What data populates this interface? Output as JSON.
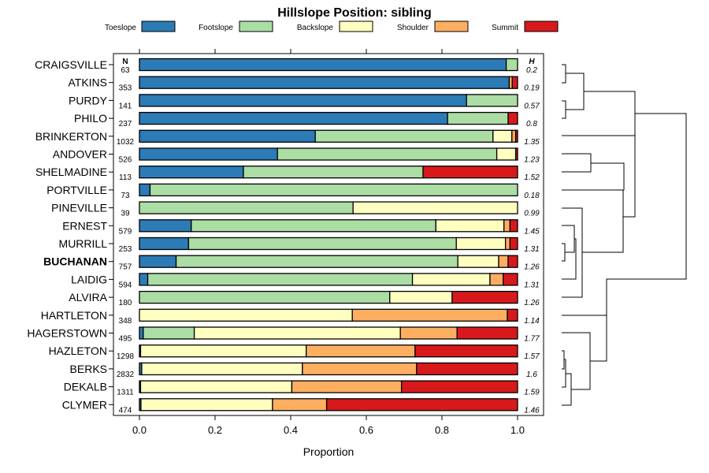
{
  "chart_data": {
    "type": "stacked-bar",
    "title": "Hillslope Position: sibling",
    "xlabel": "Proportion",
    "xlim": [
      0,
      1
    ],
    "xticks": [
      "0.0",
      "0.2",
      "0.4",
      "0.6",
      "0.8",
      "1.0"
    ],
    "n_header": "N",
    "h_header": "H",
    "legend": [
      {
        "label": "Toeslope",
        "color": "#2C7BB6"
      },
      {
        "label": "Footslope",
        "color": "#ABDDA4"
      },
      {
        "label": "Backslope",
        "color": "#FFFFBF"
      },
      {
        "label": "Shoulder",
        "color": "#FDAE61"
      },
      {
        "label": "Summit",
        "color": "#D7191C"
      }
    ],
    "rows": [
      {
        "name": "CRAIGSVILLE",
        "n": "63",
        "h": "0.2",
        "bold": false,
        "values": [
          0.97,
          0.03,
          0,
          0,
          0
        ]
      },
      {
        "name": "ATKINS",
        "n": "353",
        "h": "0.19",
        "bold": false,
        "values": [
          0.978,
          0,
          0,
          0.008,
          0.014
        ]
      },
      {
        "name": "PURDY",
        "n": "141",
        "h": "0.57",
        "bold": false,
        "values": [
          0.865,
          0.135,
          0,
          0,
          0
        ]
      },
      {
        "name": "PHILO",
        "n": "237",
        "h": "0.8",
        "bold": false,
        "values": [
          0.815,
          0.16,
          0,
          0,
          0.025
        ]
      },
      {
        "name": "BRINKERTON",
        "n": "1032",
        "h": "1.35",
        "bold": false,
        "values": [
          0.465,
          0.47,
          0.05,
          0.01,
          0.005
        ]
      },
      {
        "name": "ANDOVER",
        "n": "526",
        "h": "1.23",
        "bold": false,
        "values": [
          0.365,
          0.58,
          0.05,
          0,
          0.005
        ]
      },
      {
        "name": "SHELMADINE",
        "n": "113",
        "h": "1.52",
        "bold": false,
        "values": [
          0.275,
          0.475,
          0,
          0,
          0.25
        ]
      },
      {
        "name": "PORTVILLE",
        "n": "73",
        "h": "0.18",
        "bold": false,
        "values": [
          0.028,
          0.972,
          0,
          0,
          0
        ]
      },
      {
        "name": "PINEVILLE",
        "n": "39",
        "h": "0.99",
        "bold": false,
        "values": [
          0,
          0.565,
          0.435,
          0,
          0
        ]
      },
      {
        "name": "ERNEST",
        "n": "579",
        "h": "1.45",
        "bold": false,
        "values": [
          0.137,
          0.647,
          0.18,
          0.016,
          0.02
        ]
      },
      {
        "name": "MURRILL",
        "n": "253",
        "h": "1.31",
        "bold": false,
        "values": [
          0.13,
          0.708,
          0.13,
          0.012,
          0.02
        ]
      },
      {
        "name": "BUCHANAN",
        "n": "757",
        "h": "1.26",
        "bold": true,
        "values": [
          0.097,
          0.745,
          0.108,
          0.025,
          0.025
        ]
      },
      {
        "name": "LAIDIG",
        "n": "594",
        "h": "1.31",
        "bold": false,
        "values": [
          0.022,
          0.7,
          0.205,
          0.035,
          0.038
        ]
      },
      {
        "name": "ALVIRA",
        "n": "180",
        "h": "1.26",
        "bold": false,
        "values": [
          0,
          0.662,
          0.165,
          0,
          0.173
        ]
      },
      {
        "name": "HARTLETON",
        "n": "348",
        "h": "1.14",
        "bold": false,
        "values": [
          0,
          0,
          0.563,
          0.41,
          0.027
        ]
      },
      {
        "name": "HAGERSTOWN",
        "n": "495",
        "h": "1.77",
        "bold": false,
        "values": [
          0.01,
          0.135,
          0.545,
          0.15,
          0.16
        ]
      },
      {
        "name": "HAZLETON",
        "n": "1298",
        "h": "1.57",
        "bold": false,
        "values": [
          0.003,
          0,
          0.438,
          0.288,
          0.271
        ]
      },
      {
        "name": "BERKS",
        "n": "2832",
        "h": "1.6",
        "bold": false,
        "values": [
          0.006,
          0,
          0.425,
          0.302,
          0.267
        ]
      },
      {
        "name": "DEKALB",
        "n": "1311",
        "h": "1.59",
        "bold": false,
        "values": [
          0.003,
          0,
          0.4,
          0.29,
          0.307
        ]
      },
      {
        "name": "CLYMER",
        "n": "474",
        "h": "1.46",
        "bold": false,
        "values": [
          0.004,
          0,
          0.348,
          0.143,
          0.505
        ]
      }
    ]
  }
}
